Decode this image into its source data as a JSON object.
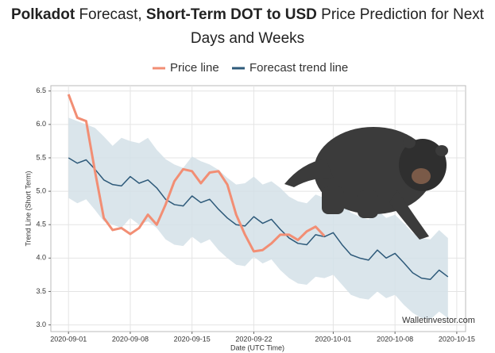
{
  "chart_data": {
    "type": "line",
    "title_parts": [
      {
        "text": "Polkadot",
        "bold": true
      },
      {
        "text": " Forecast, ",
        "bold": false
      },
      {
        "text": "Short-Term DOT to USD",
        "bold": true
      },
      {
        "text": " Price Prediction for Next Days and Weeks",
        "bold": false
      }
    ],
    "xlabel": "Date (UTC Time)",
    "ylabel": "Trend Line (Short Term)",
    "watermark": "Walletinvestor.com",
    "x": [
      "2020-09-01",
      "2020-09-02",
      "2020-09-03",
      "2020-09-04",
      "2020-09-05",
      "2020-09-06",
      "2020-09-07",
      "2020-09-08",
      "2020-09-09",
      "2020-09-10",
      "2020-09-11",
      "2020-09-12",
      "2020-09-13",
      "2020-09-14",
      "2020-09-15",
      "2020-09-16",
      "2020-09-17",
      "2020-09-18",
      "2020-09-19",
      "2020-09-20",
      "2020-09-21",
      "2020-09-22",
      "2020-09-23",
      "2020-09-24",
      "2020-09-25",
      "2020-09-26",
      "2020-09-27",
      "2020-09-28",
      "2020-09-29",
      "2020-09-30",
      "2020-10-01",
      "2020-10-02",
      "2020-10-03",
      "2020-10-04",
      "2020-10-05",
      "2020-10-06",
      "2020-10-07",
      "2020-10-08",
      "2020-10-09",
      "2020-10-10",
      "2020-10-11",
      "2020-10-12",
      "2020-10-13",
      "2020-10-14"
    ],
    "series": [
      {
        "name": "Price line",
        "color": "#f28e74",
        "values": [
          6.45,
          6.1,
          6.05,
          5.3,
          4.6,
          4.42,
          4.45,
          4.36,
          4.45,
          4.65,
          4.5,
          4.8,
          5.15,
          5.33,
          5.3,
          5.12,
          5.28,
          5.3,
          5.1,
          4.65,
          4.35,
          4.1,
          4.12,
          4.22,
          4.35,
          4.35,
          4.27,
          4.4,
          4.47,
          4.33,
          null,
          null,
          null,
          null,
          null,
          null,
          null,
          null,
          null,
          null,
          null,
          null,
          null,
          null
        ]
      },
      {
        "name": "Forecast trend line",
        "color": "#2e5a7a",
        "values": [
          5.5,
          5.42,
          5.47,
          5.33,
          5.17,
          5.1,
          5.08,
          5.22,
          5.12,
          5.17,
          5.05,
          4.88,
          4.8,
          4.78,
          4.93,
          4.83,
          4.88,
          4.73,
          4.6,
          4.5,
          4.48,
          4.62,
          4.52,
          4.58,
          4.43,
          4.3,
          4.22,
          4.2,
          4.35,
          4.32,
          4.38,
          4.2,
          4.05,
          4.0,
          3.97,
          4.12,
          4.0,
          4.07,
          3.93,
          3.78,
          3.7,
          3.68,
          3.82,
          3.72
        ]
      }
    ],
    "band": {
      "color": "#d3e0e8",
      "upper": [
        6.1,
        6.05,
        6.0,
        5.95,
        5.82,
        5.68,
        5.8,
        5.75,
        5.72,
        5.8,
        5.62,
        5.48,
        5.4,
        5.35,
        5.52,
        5.45,
        5.4,
        5.32,
        5.2,
        5.1,
        5.12,
        5.22,
        5.1,
        5.15,
        5.05,
        4.92,
        4.85,
        4.82,
        4.95,
        4.9,
        4.98,
        4.82,
        4.68,
        4.62,
        4.58,
        4.72,
        4.6,
        4.65,
        4.52,
        4.38,
        4.3,
        4.28,
        4.42,
        4.3
      ],
      "lower": [
        4.9,
        4.82,
        4.88,
        4.72,
        4.55,
        4.5,
        4.45,
        4.6,
        4.5,
        4.55,
        4.45,
        4.28,
        4.2,
        4.18,
        4.32,
        4.22,
        4.28,
        4.12,
        4.0,
        3.9,
        3.88,
        4.02,
        3.92,
        3.98,
        3.82,
        3.7,
        3.62,
        3.6,
        3.72,
        3.7,
        3.75,
        3.6,
        3.45,
        3.4,
        3.38,
        3.5,
        3.4,
        3.45,
        3.3,
        3.18,
        3.1,
        3.08,
        3.2,
        3.1
      ]
    },
    "xlim": [
      "2020-08-30",
      "2020-10-16"
    ],
    "xticks": [
      "2020-09-01",
      "2020-09-08",
      "2020-09-15",
      "2020-09-22",
      "2020-10-01",
      "2020-10-08",
      "2020-10-15"
    ],
    "ylim": [
      2.9,
      6.58
    ],
    "yticks": [
      {
        "value": 3,
        "label": "3.0"
      },
      {
        "value": 3.5,
        "label": "3.5"
      },
      {
        "value": 4,
        "label": "4.0"
      },
      {
        "value": 4.5,
        "label": "4.5"
      },
      {
        "value": 5,
        "label": "5.0"
      },
      {
        "value": 5.5,
        "label": "5.5"
      },
      {
        "value": 6,
        "label": "6.0"
      },
      {
        "value": 6.5,
        "label": "6.5"
      }
    ],
    "grid": true
  }
}
